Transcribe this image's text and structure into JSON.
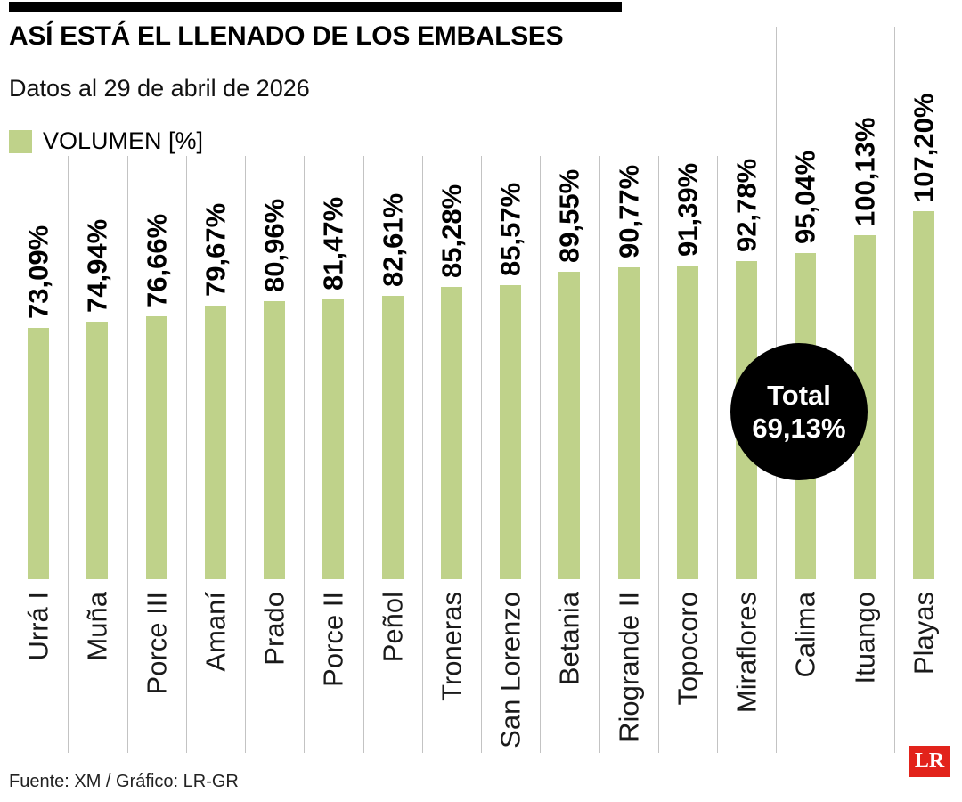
{
  "colors": {
    "bar": "#bfd28a",
    "grid": "#c3c3c3",
    "badge_bg": "#000000",
    "badge_text": "#ffffff",
    "logo_bg": "#e2231b"
  },
  "header": {
    "title": "ASÍ ESTÁ EL LLENADO DE LOS EMBALSES",
    "subtitle": "Datos al 29 de abril de 2026"
  },
  "legend": {
    "label": "VOLUMEN [%]"
  },
  "total_badge": {
    "label": "Total",
    "value": "69,13%"
  },
  "footer": {
    "source": "Fuente: XM / Gráfico: LR-GR",
    "logo": "LR"
  },
  "chart_data": {
    "type": "bar",
    "title": "ASÍ ESTÁ EL LLENADO DE LOS EMBALSES",
    "subtitle": "Datos al 29 de abril de 2026",
    "ylabel": "VOLUMEN [%]",
    "xlabel": "",
    "categories": [
      "Urrá I",
      "Muña",
      "Porce III",
      "Amaní",
      "Prado",
      "Porce II",
      "Peñol",
      "Troneras",
      "San Lorenzo",
      "Betania",
      "Riogrande II",
      "Topocoro",
      "Miraflores",
      "Calima",
      "Ituango",
      "Playas"
    ],
    "values": [
      73.09,
      74.94,
      76.66,
      79.67,
      80.96,
      81.47,
      82.61,
      85.28,
      85.57,
      89.55,
      90.77,
      91.39,
      92.78,
      95.04,
      100.13,
      107.2
    ],
    "value_labels": [
      "73,09%",
      "74,94%",
      "76,66%",
      "79,67%",
      "80,96%",
      "81,47%",
      "82,61%",
      "85,28%",
      "85,57%",
      "89,55%",
      "90,77%",
      "91,39%",
      "92,78%",
      "95,04%",
      "100,13%",
      "107,20%"
    ],
    "annotation_total_label": "Total",
    "annotation_total_value": 69.13,
    "ylim": [
      0,
      110
    ],
    "legend_position": "top-left",
    "grid": "vertical-separators",
    "bar_orientation": "vertical",
    "label_rotation_degrees": -90
  }
}
